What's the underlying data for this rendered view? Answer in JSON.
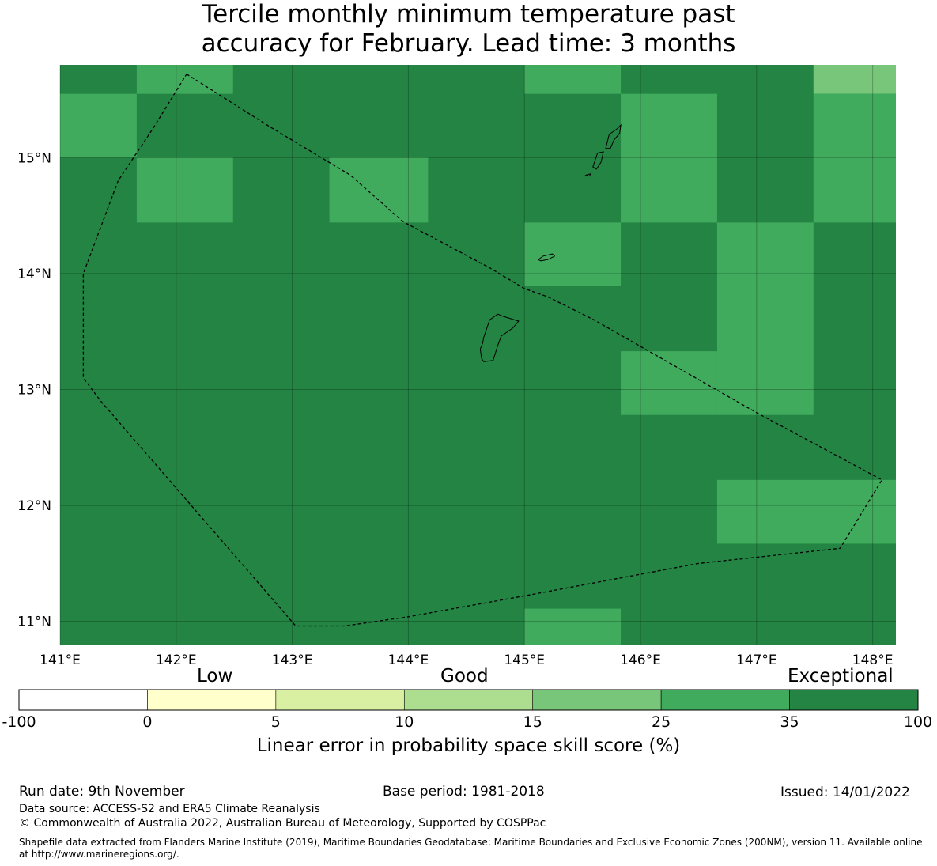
{
  "title": {
    "line1": "Tercile monthly minimum temperature past",
    "line2": "accuracy for February. Lead time: 3 months"
  },
  "map": {
    "lon_range": [
      141.0,
      148.2
    ],
    "lat_range": [
      10.8,
      15.8
    ],
    "lon_ticks": [
      {
        "value": 141,
        "label": "141°E"
      },
      {
        "value": 142,
        "label": "142°E"
      },
      {
        "value": 143,
        "label": "143°E"
      },
      {
        "value": 144,
        "label": "144°E"
      },
      {
        "value": 145,
        "label": "145°E"
      },
      {
        "value": 146,
        "label": "146°E"
      },
      {
        "value": 147,
        "label": "147°E"
      },
      {
        "value": 148,
        "label": "148°E"
      }
    ],
    "lat_ticks": [
      {
        "value": 15,
        "label": "15°N"
      },
      {
        "value": 14,
        "label": "14°N"
      },
      {
        "value": 13,
        "label": "13°N"
      },
      {
        "value": 12,
        "label": "12°N"
      },
      {
        "value": 11,
        "label": "11°N"
      }
    ],
    "grid_cells": [
      {
        "lon": [
          141.0,
          141.66
        ],
        "lat": [
          15.55,
          15.8
        ],
        "cls": 6
      },
      {
        "lon": [
          141.66,
          142.49
        ],
        "lat": [
          15.55,
          15.8
        ],
        "cls": 5
      },
      {
        "lon": [
          145.0,
          145.83
        ],
        "lat": [
          15.55,
          15.8
        ],
        "cls": 5
      },
      {
        "lon": [
          147.49,
          148.2
        ],
        "lat": [
          15.55,
          15.8
        ],
        "cls": 4
      },
      {
        "lon": [
          141.0,
          141.66
        ],
        "lat": [
          15.0,
          15.55
        ],
        "cls": 5
      },
      {
        "lon": [
          145.83,
          146.66
        ],
        "lat": [
          14.44,
          15.55
        ],
        "cls": 5
      },
      {
        "lon": [
          147.49,
          148.2
        ],
        "lat": [
          14.44,
          15.55
        ],
        "cls": 5
      },
      {
        "lon": [
          141.66,
          142.49
        ],
        "lat": [
          14.44,
          15.0
        ],
        "cls": 5
      },
      {
        "lon": [
          143.32,
          144.17
        ],
        "lat": [
          14.44,
          15.0
        ],
        "cls": 5
      },
      {
        "lon": [
          145.0,
          145.83
        ],
        "lat": [
          13.89,
          14.44
        ],
        "cls": 5
      },
      {
        "lon": [
          146.66,
          147.49
        ],
        "lat": [
          12.78,
          14.44
        ],
        "cls": 5
      },
      {
        "lon": [
          145.83,
          146.66
        ],
        "lat": [
          12.78,
          13.33
        ],
        "cls": 5
      },
      {
        "lon": [
          146.66,
          148.2
        ],
        "lat": [
          11.67,
          12.22
        ],
        "cls": 5
      },
      {
        "lon": [
          145.0,
          145.83
        ],
        "lat": [
          10.8,
          11.11
        ],
        "cls": 5
      }
    ],
    "default_class": 6,
    "eez_boundary": [
      [
        142.09,
        15.72
      ],
      [
        142.8,
        15.27
      ],
      [
        143.5,
        14.85
      ],
      [
        143.95,
        14.45
      ],
      [
        144.7,
        14.05
      ],
      [
        145.0,
        13.87
      ],
      [
        145.2,
        13.8
      ],
      [
        145.6,
        13.6
      ],
      [
        146.3,
        13.2
      ],
      [
        147.0,
        12.8
      ],
      [
        148.08,
        12.22
      ],
      [
        147.72,
        11.63
      ],
      [
        146.5,
        11.5
      ],
      [
        145.0,
        11.22
      ],
      [
        144.0,
        11.04
      ],
      [
        143.45,
        10.96
      ],
      [
        143.03,
        10.96
      ],
      [
        141.35,
        12.9
      ],
      [
        141.2,
        13.1
      ],
      [
        141.2,
        14.0
      ],
      [
        141.5,
        14.8
      ],
      [
        141.8,
        15.25
      ],
      [
        142.09,
        15.72
      ]
    ],
    "islands": [
      [
        [
          144.65,
          13.45
        ],
        [
          144.7,
          13.6
        ],
        [
          144.77,
          13.65
        ],
        [
          144.82,
          13.63
        ],
        [
          144.95,
          13.59
        ],
        [
          144.9,
          13.53
        ],
        [
          144.8,
          13.46
        ],
        [
          144.77,
          13.38
        ],
        [
          144.73,
          13.25
        ],
        [
          144.65,
          13.24
        ],
        [
          144.63,
          13.27
        ],
        [
          144.62,
          13.35
        ],
        [
          144.64,
          13.4
        ],
        [
          144.65,
          13.45
        ]
      ],
      [
        [
          145.12,
          14.12
        ],
        [
          145.16,
          14.15
        ],
        [
          145.24,
          14.17
        ],
        [
          145.26,
          14.15
        ],
        [
          145.2,
          14.12
        ],
        [
          145.14,
          14.11
        ],
        [
          145.12,
          14.12
        ]
      ],
      [
        [
          145.59,
          14.92
        ],
        [
          145.63,
          15.04
        ],
        [
          145.68,
          15.05
        ],
        [
          145.66,
          14.96
        ],
        [
          145.62,
          14.9
        ],
        [
          145.59,
          14.92
        ]
      ],
      [
        [
          145.7,
          15.08
        ],
        [
          145.73,
          15.2
        ],
        [
          145.8,
          15.25
        ],
        [
          145.83,
          15.28
        ],
        [
          145.82,
          15.21
        ],
        [
          145.77,
          15.15
        ],
        [
          145.74,
          15.08
        ],
        [
          145.7,
          15.08
        ]
      ],
      [
        [
          145.53,
          14.85
        ],
        [
          145.57,
          14.86
        ],
        [
          145.56,
          14.84
        ],
        [
          145.53,
          14.85
        ]
      ]
    ]
  },
  "colorbar": {
    "categories": [
      {
        "range": [
          -100,
          0
        ],
        "color": "#ffffff"
      },
      {
        "range": [
          0,
          5
        ],
        "color": "#ffffcc"
      },
      {
        "range": [
          5,
          10
        ],
        "color": "#d9f0a3"
      },
      {
        "range": [
          10,
          15
        ],
        "color": "#addd8e"
      },
      {
        "range": [
          15,
          25
        ],
        "color": "#78c679"
      },
      {
        "range": [
          25,
          35
        ],
        "color": "#41ab5d"
      },
      {
        "range": [
          35,
          100
        ],
        "color": "#238443"
      }
    ],
    "tick_labels": [
      "-100",
      "0",
      "5",
      "10",
      "15",
      "25",
      "35",
      "100"
    ],
    "words": {
      "low": "Low",
      "good": "Good",
      "exceptional": "Exceptional"
    },
    "label": "Linear error in probability space skill score (%)"
  },
  "footer": {
    "run_date": "Run date: 9th November",
    "base_period": "Base period: 1981-2018",
    "issued": "Issued: 14/01/2022",
    "data_source": "Data source: ACCESS-S2 and ERA5 Climate Reanalysis",
    "copyright": "© Commonwealth of Australia 2022, Australian Bureau of Meteorology, Supported by COSPPac",
    "shapefile_line1": "Shapefile data extracted from Flanders Marine Institute (2019), Maritime Boundaries Geodatabase: Maritime Boundaries and Exclusive Economic Zones (200NM), version 11. Available online",
    "shapefile_line2": "at http://www.marineregions.org/."
  }
}
